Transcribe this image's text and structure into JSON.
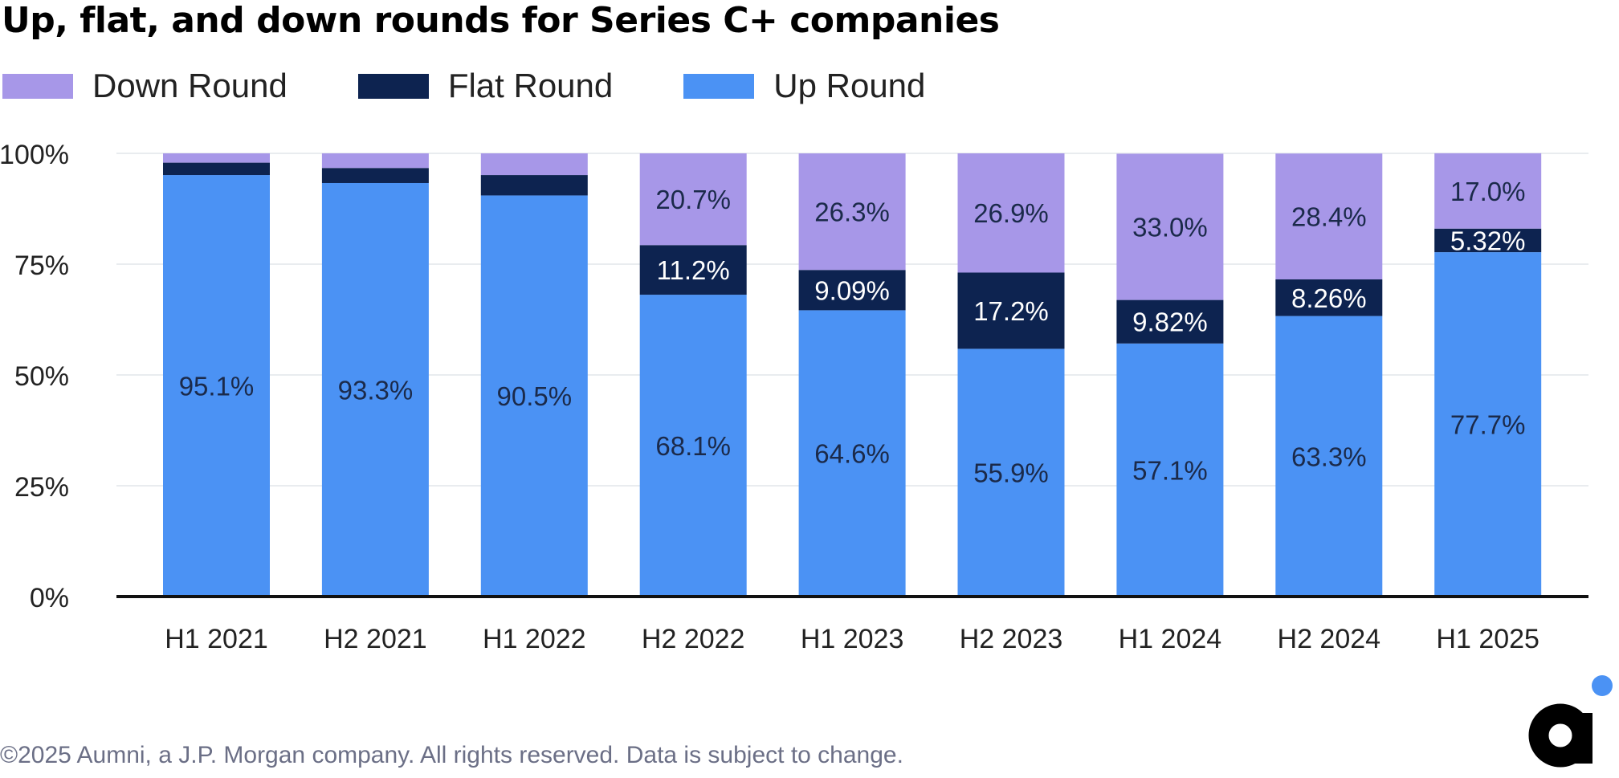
{
  "title": "Up, flat, and down rounds for Series C+ companies",
  "footer": "©2025 Aumni, a J.P. Morgan company. All rights reserved. Data is subject to change.",
  "logo": {
    "icon": "aumni-logo-icon",
    "accent_color": "#4b92f4",
    "text_color": "#000000"
  },
  "chart_data": {
    "type": "bar",
    "stacked": true,
    "title": "Up, flat, and down rounds for Series C+ companies",
    "xlabel": "",
    "ylabel": "",
    "ylim": [
      0,
      100
    ],
    "y_ticks": [
      "0%",
      "25%",
      "50%",
      "75%",
      "100%"
    ],
    "y_tick_values": [
      0,
      25,
      50,
      75,
      100
    ],
    "grid": "horizontal",
    "legend_position": "top-left",
    "categories": [
      "H1 2021",
      "H2 2021",
      "H1 2022",
      "H2 2022",
      "H1 2023",
      "H2 2023",
      "H1 2024",
      "H2 2024",
      "H1 2025"
    ],
    "series": [
      {
        "name": "Up Round",
        "color": "#4b92f4",
        "label_color": "#1b2a4a",
        "values": [
          95.1,
          93.3,
          90.5,
          68.1,
          64.6,
          55.9,
          57.1,
          63.3,
          77.7
        ],
        "labels": [
          "95.1%",
          "93.3%",
          "90.5%",
          "68.1%",
          "64.6%",
          "55.9%",
          "57.1%",
          "63.3%",
          "77.7%"
        ]
      },
      {
        "name": "Flat Round",
        "color": "#0d2350",
        "label_color": "#ffffff",
        "values": [
          2.8,
          3.4,
          4.6,
          11.2,
          9.09,
          17.2,
          9.82,
          8.26,
          5.32
        ],
        "labels": [
          "",
          "",
          "",
          "11.2%",
          "9.09%",
          "17.2%",
          "9.82%",
          "8.26%",
          "5.32%"
        ]
      },
      {
        "name": "Down Round",
        "color": "#a797e8",
        "label_color": "#1b2a4a",
        "values": [
          2.1,
          3.3,
          4.9,
          20.7,
          26.3,
          26.9,
          33.0,
          28.4,
          17.0
        ],
        "labels": [
          "",
          "",
          "",
          "20.7%",
          "26.3%",
          "26.9%",
          "33.0%",
          "28.4%",
          "17.0%"
        ]
      }
    ]
  }
}
